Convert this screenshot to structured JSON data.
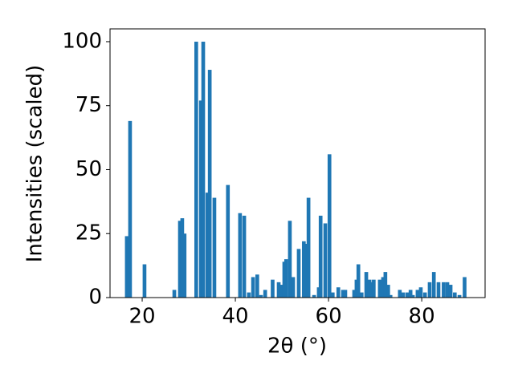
{
  "chart_data": {
    "type": "bar",
    "xlabel": "2θ (°)",
    "ylabel": "Intensities (scaled)",
    "x": [
      16.7,
      17.4,
      20.5,
      26.9,
      28.1,
      28.6,
      29.1,
      31.6,
      32.6,
      33.1,
      34.0,
      34.5,
      35.5,
      38.4,
      41.0,
      41.9,
      42.9,
      43.8,
      44.7,
      45.5,
      46.4,
      48.0,
      49.3,
      49.8,
      50.5,
      50.9,
      51.7,
      52.4,
      53.6,
      54.7,
      55.2,
      55.7,
      56.9,
      57.9,
      58.3,
      59.3,
      60.2,
      60.9,
      62.1,
      63.1,
      63.6,
      65.5,
      66.0,
      66.4,
      67.1,
      68.1,
      68.8,
      69.1,
      69.7,
      71.0,
      71.7,
      72.2,
      72.8,
      73.3,
      75.3,
      76.0,
      76.9,
      77.6,
      78.1,
      79.1,
      79.8,
      80.7,
      81.7,
      82.6,
      83.6,
      84.7,
      85.5,
      86.2,
      87.1,
      88.1,
      89.2
    ],
    "values": [
      24,
      69,
      13,
      3,
      30,
      31,
      25,
      100,
      77,
      100,
      41,
      89,
      39,
      44,
      33,
      32,
      2,
      8,
      9,
      1,
      3,
      7,
      6,
      5,
      14,
      15,
      30,
      8,
      19,
      22,
      21,
      39,
      1,
      4,
      32,
      29,
      56,
      2,
      4,
      3,
      3,
      3,
      7,
      13,
      2,
      10,
      7,
      6,
      7,
      7,
      8,
      10,
      5,
      1,
      3,
      2,
      2,
      3,
      1,
      3,
      4,
      2,
      6,
      10,
      6,
      6,
      6,
      5,
      2,
      1,
      8
    ],
    "color": "#1f77b4",
    "xlim": [
      13.1,
      93.6
    ],
    "xticks": [
      20,
      40,
      60,
      80
    ],
    "ylim": [
      0,
      105
    ],
    "yticks": [
      0,
      25,
      50,
      75,
      100
    ],
    "grid": false
  }
}
